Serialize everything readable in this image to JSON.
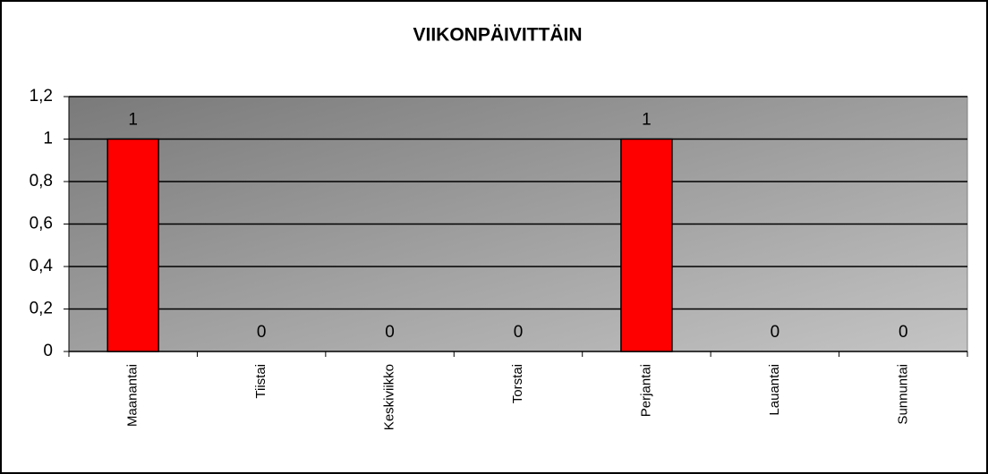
{
  "chart_data": {
    "type": "bar",
    "title": "VIIKONPÄIVITTÄIN",
    "categories": [
      "Maanantai",
      "Tiistai",
      "Keskiviikko",
      "Torstai",
      "Perjantai",
      "Lauantai",
      "Sunnuntai"
    ],
    "values": [
      1,
      0,
      0,
      0,
      1,
      0,
      0
    ],
    "color": "#ff0000",
    "ylim": [
      0,
      1.2
    ],
    "yticks": [
      0,
      {
        "value": 0.2,
        "label": "0,2"
      },
      {
        "value": 0.4,
        "label": "0,4"
      },
      {
        "value": 0.6,
        "label": "0,6"
      },
      {
        "value": 0.8,
        "label": "0,8"
      },
      1,
      {
        "value": 1.2,
        "label": "1,2"
      }
    ],
    "grid": true
  }
}
